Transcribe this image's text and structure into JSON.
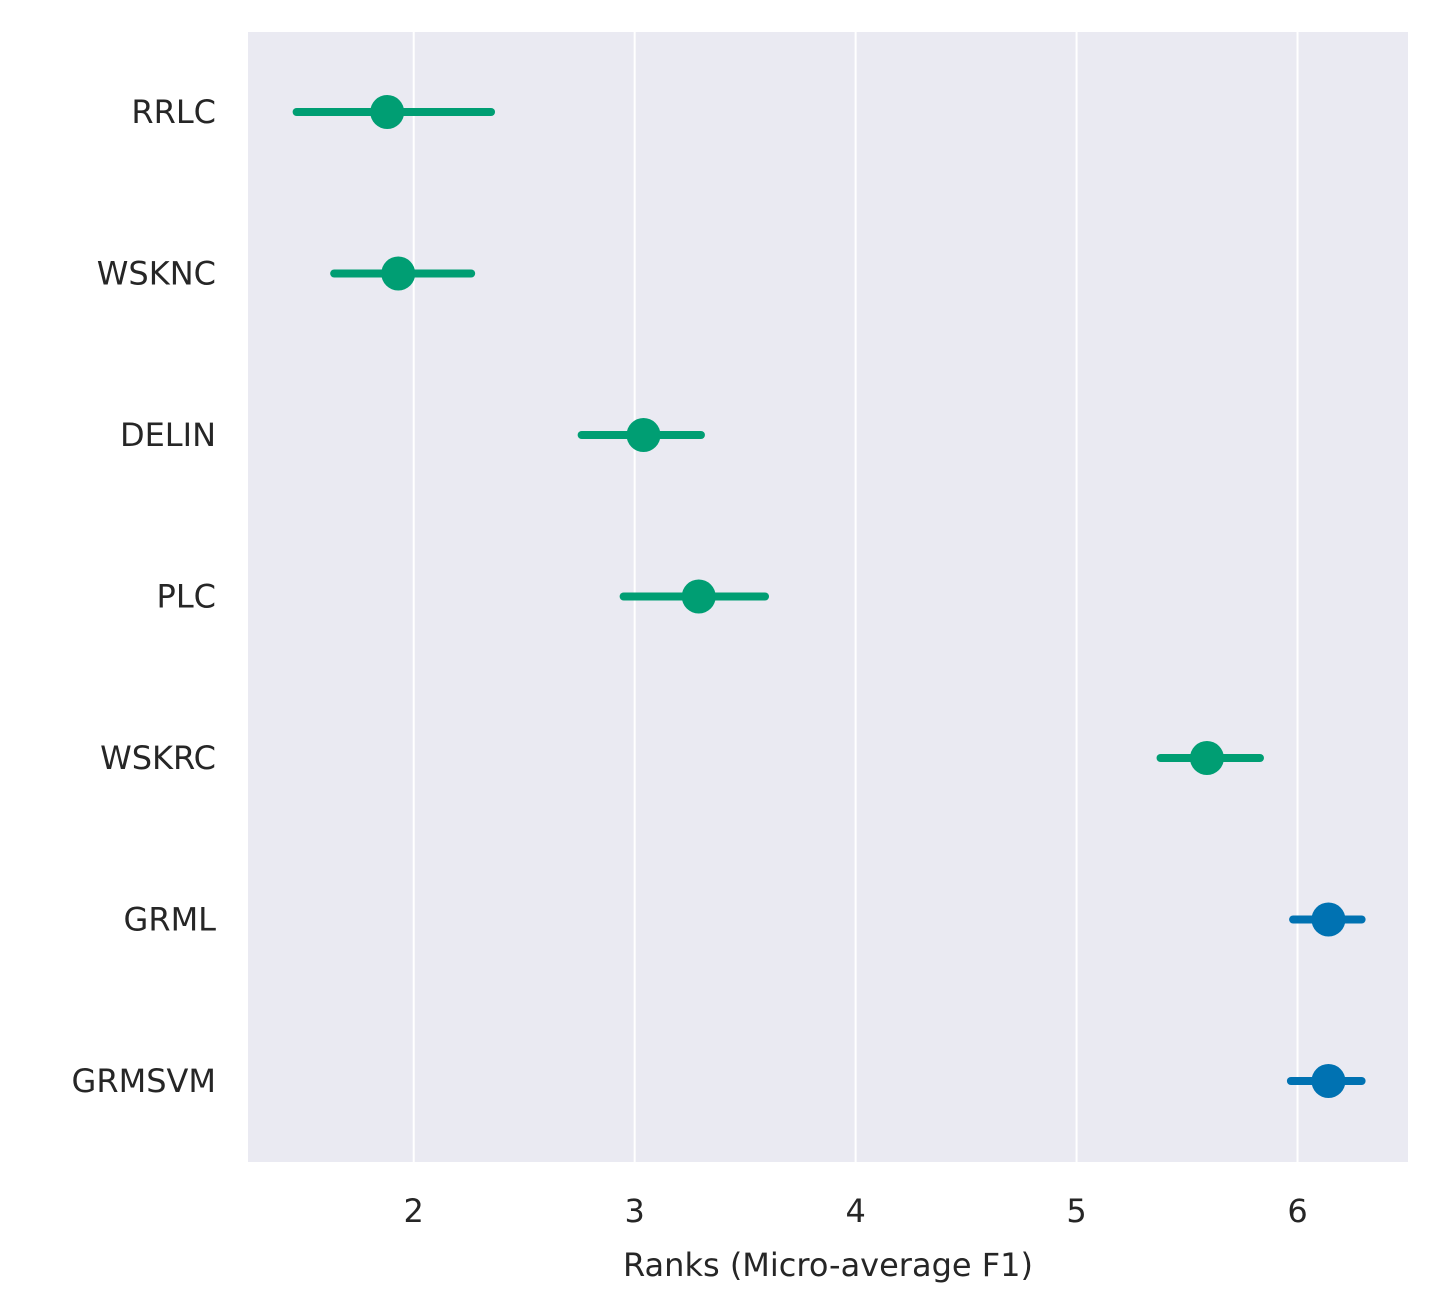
{
  "chart_data": {
    "type": "scatter",
    "subtype": "point-with-interval",
    "title": "",
    "xlabel": "Ranks (Micro-average F1)",
    "ylabel": "",
    "xlim": [
      1.25,
      6.5
    ],
    "xticks": [
      2,
      3,
      4,
      5,
      6
    ],
    "grid": "vertical",
    "background": "#eaeaf2",
    "colors": {
      "group_a": "#009e73",
      "group_b": "#0072b2"
    },
    "categories": [
      "RRLC",
      "WSKNC",
      "DELIN",
      "PLC",
      "WSKRC",
      "GRML",
      "GRMSVM"
    ],
    "points": [
      {
        "label": "RRLC",
        "value": 1.88,
        "low": 1.47,
        "high": 2.35,
        "group": "group_a"
      },
      {
        "label": "WSKNC",
        "value": 1.93,
        "low": 1.64,
        "high": 2.26,
        "group": "group_a"
      },
      {
        "label": "DELIN",
        "value": 3.04,
        "low": 2.76,
        "high": 3.3,
        "group": "group_a"
      },
      {
        "label": "PLC",
        "value": 3.29,
        "low": 2.95,
        "high": 3.59,
        "group": "group_a"
      },
      {
        "label": "WSKRC",
        "value": 5.59,
        "low": 5.38,
        "high": 5.83,
        "group": "group_a"
      },
      {
        "label": "GRML",
        "value": 6.14,
        "low": 5.98,
        "high": 6.29,
        "group": "group_b"
      },
      {
        "label": "GRMSVM",
        "value": 6.14,
        "low": 5.97,
        "high": 6.29,
        "group": "group_b"
      }
    ]
  }
}
